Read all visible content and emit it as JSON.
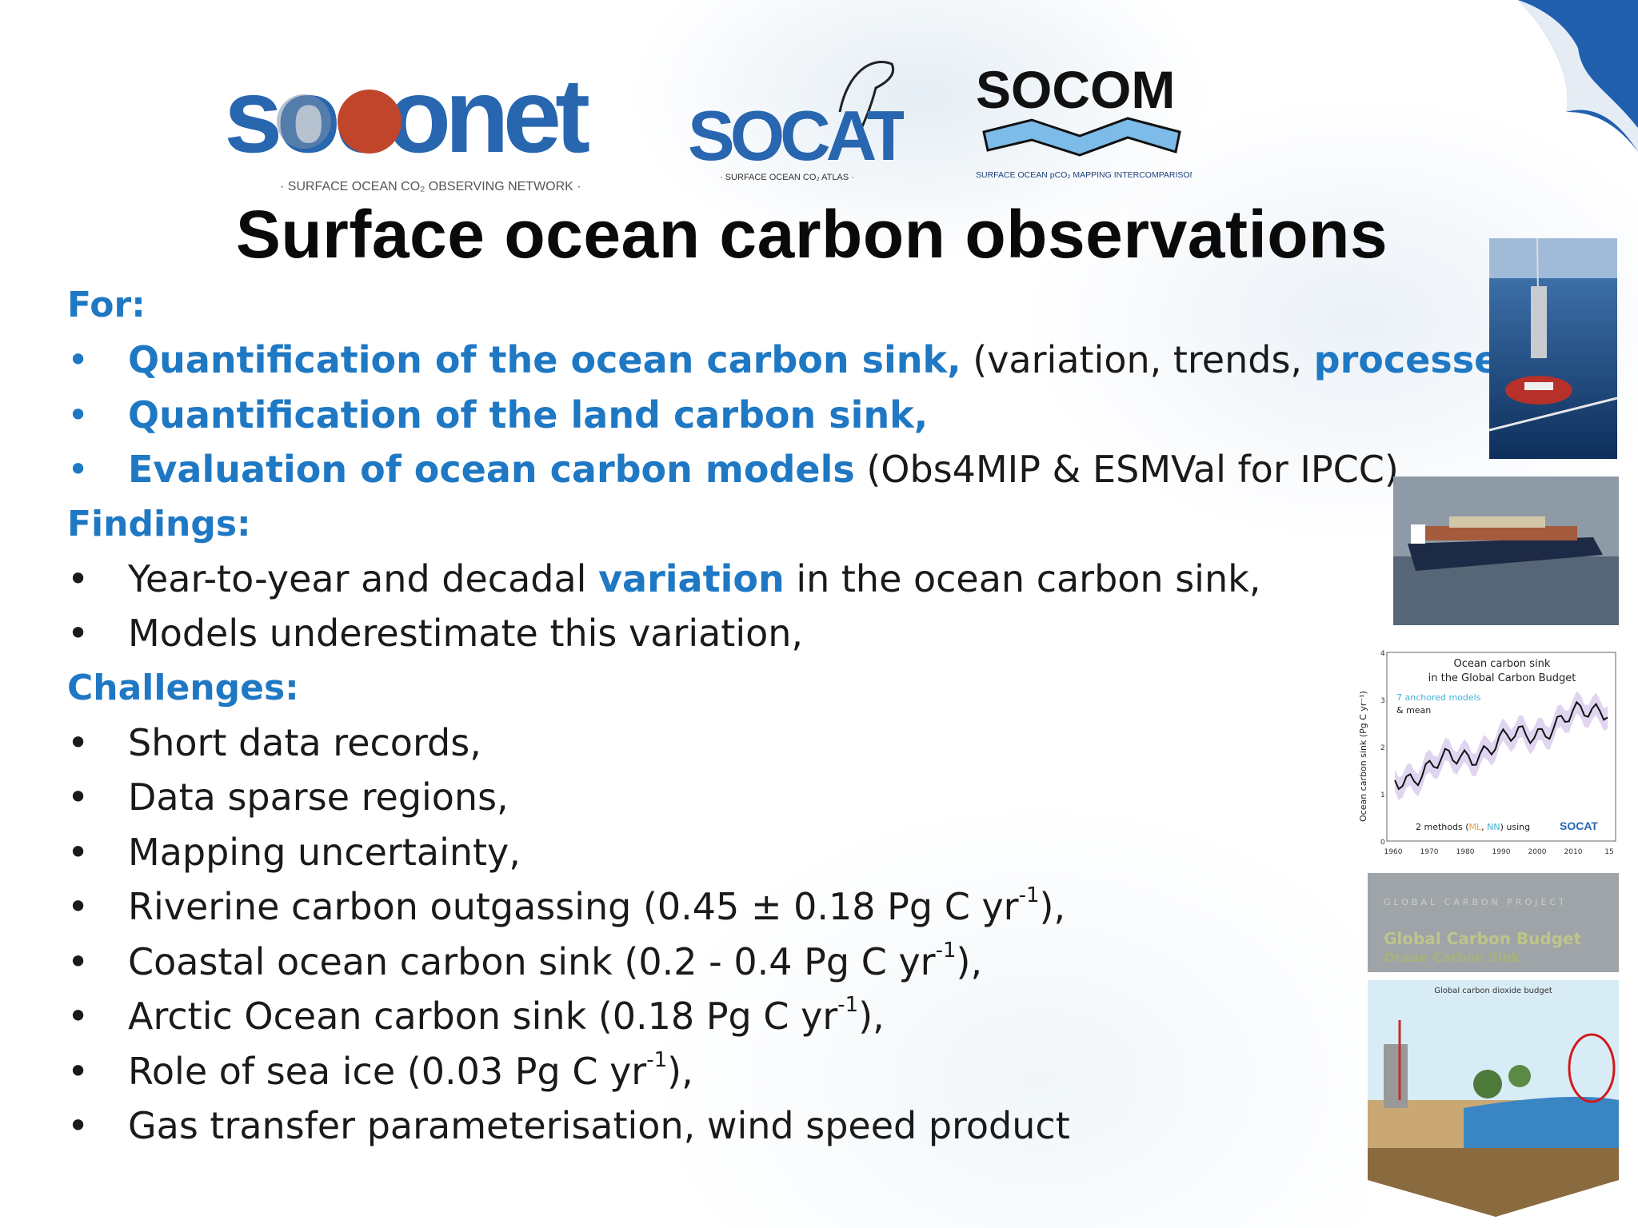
{
  "logos": {
    "soconet": {
      "wordmark": "soconet",
      "tagline": "· SURFACE OCEAN CO₂ OBSERVING NETWORK ·"
    },
    "socat": {
      "wordmark": "SOCAT",
      "tagline": "· SURFACE OCEAN CO₂ ATLAS ·"
    },
    "socom": {
      "wordmark": "SOCOM",
      "tagline": "SURFACE OCEAN pCO₂ MAPPING INTERCOMPARISON"
    }
  },
  "title": "Surface ocean carbon observations",
  "sections": {
    "for": {
      "heading": "For:",
      "items": [
        {
          "a": "Quantification of the ocean carbon sink,",
          "b": " (variation, trends, ",
          "c": "processes",
          "d": "),"
        },
        {
          "a": "Quantification of the land carbon sink,"
        },
        {
          "a": "Evaluation of ocean carbon models",
          "b": " (Obs4MIP & ESMVal for IPCC),"
        }
      ]
    },
    "findings": {
      "heading": "Findings:",
      "items": [
        {
          "a": "Year-to-year and decadal ",
          "b": "variation",
          "c": " in the ocean carbon sink,"
        },
        {
          "a": "Models underestimate this variation,"
        }
      ]
    },
    "challenges": {
      "heading": "Challenges:",
      "items": [
        {
          "a": "Short data records,"
        },
        {
          "a": "Data sparse regions,"
        },
        {
          "a": "Mapping uncertainty,"
        },
        {
          "a": "Riverine carbon outgassing (0.45 ± 0.18 Pg C yr",
          "sup": "-1",
          "b": "),"
        },
        {
          "a": "Coastal ocean carbon sink (0.2 - 0.4 Pg C yr",
          "sup": "-1",
          "b": "),"
        },
        {
          "a": "Arctic Ocean carbon sink (0.18 Pg C yr",
          "sup": "-1",
          "b": "),"
        },
        {
          "a": "Role of sea ice (0.03 Pg C yr",
          "sup": "-1",
          "b": "),"
        },
        {
          "a": "Gas transfer parameterisation, wind speed product"
        }
      ]
    }
  },
  "bullet_symbol": "•",
  "sidebar": {
    "chart": {
      "title_line1": "Ocean carbon sink",
      "title_line2": "in the Global Carbon Budget",
      "legend_models": "7 anchored models",
      "legend_mean": "& mean",
      "ylabel": "Ocean carbon sink (Pg C yr⁻¹)",
      "methods": "2 methods (",
      "methods_a": "ML",
      "methods_sep": ", ",
      "methods_b": "NN",
      "methods_end": ") using",
      "socat": "SOCAT",
      "yticks": [
        "4",
        "3",
        "2",
        "1",
        "0"
      ],
      "xticks": [
        "1960",
        "1970",
        "1980",
        "1990",
        "2000",
        "2010",
        "15"
      ]
    },
    "gcb_card": {
      "line1": "GLOBAL CARBON PROJECT",
      "line2": "Global Carbon Budget",
      "line3": "Ocean Carbon Sink"
    },
    "diagram_title": "Global carbon dioxide budget"
  },
  "colors": {
    "accent_blue": "#1f78c3",
    "text": "#1a1a1a",
    "soconet_blue": "#2866b0",
    "soconet_red": "#c0452a"
  }
}
